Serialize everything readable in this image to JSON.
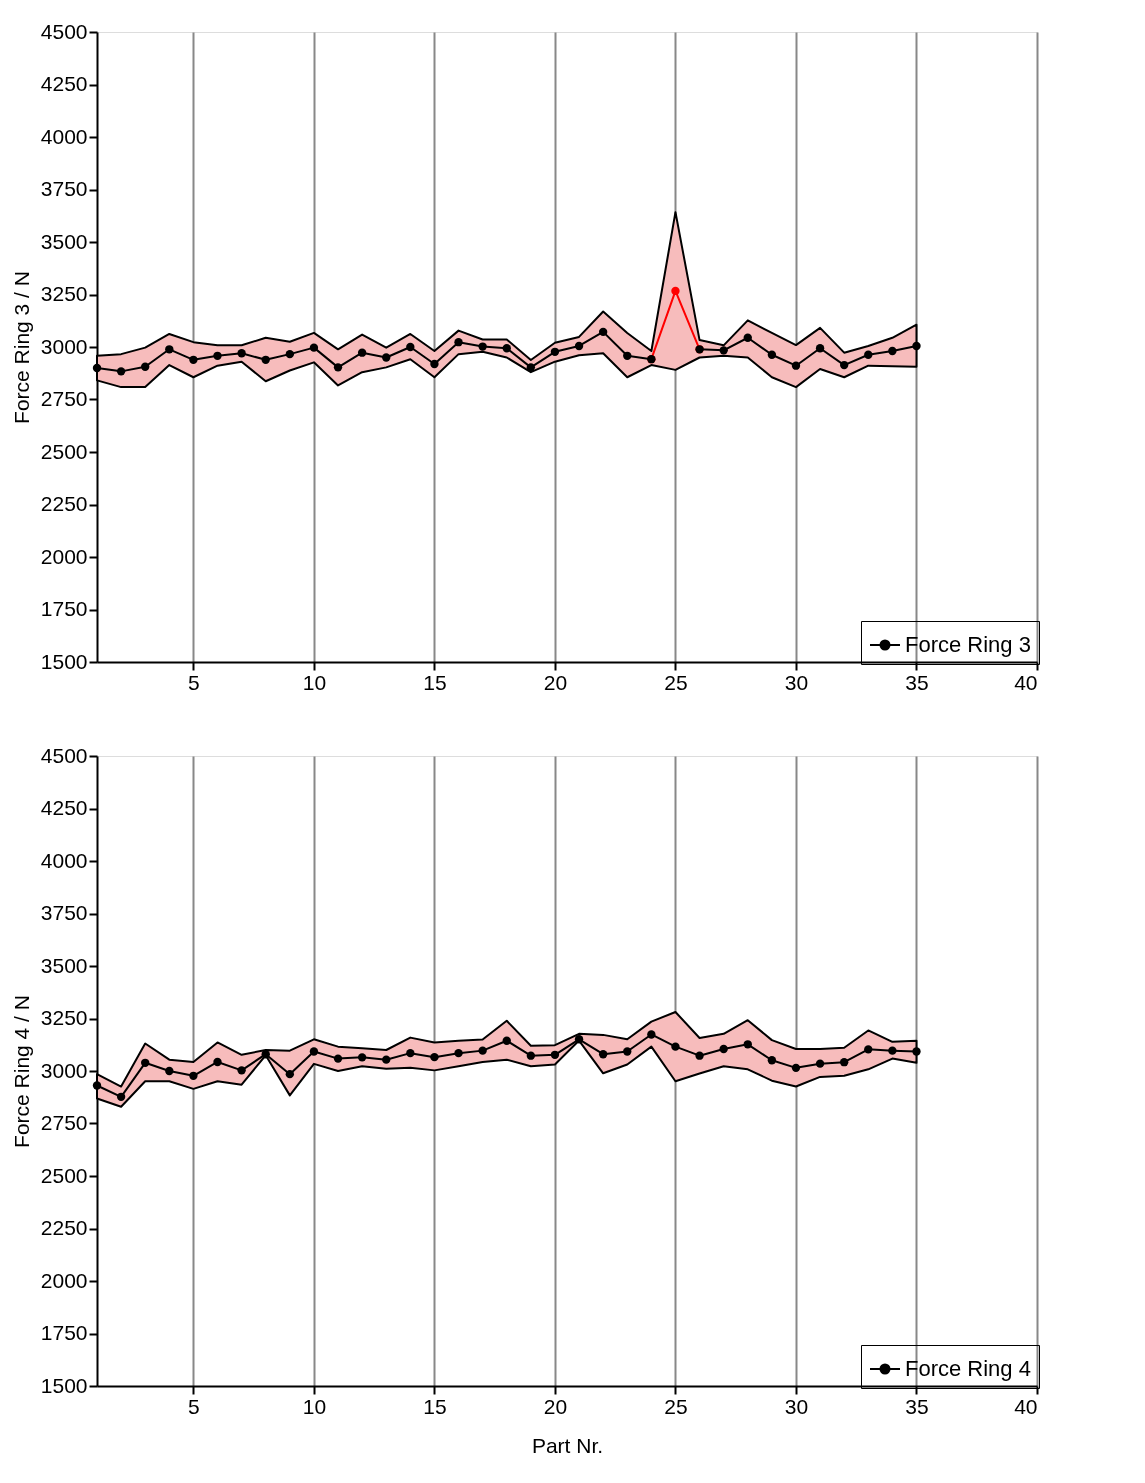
{
  "chart_data": [
    {
      "type": "line",
      "ylabel": "Force Ring 3 / N",
      "xlim": [
        1,
        40
      ],
      "xticks": [
        5,
        10,
        15,
        20,
        25,
        30,
        35,
        40
      ],
      "ylim": [
        1500,
        4500
      ],
      "yticks": [
        1500,
        1750,
        2000,
        2250,
        2500,
        2750,
        3000,
        3250,
        3500,
        3750,
        4000,
        4250,
        4500
      ],
      "grid": "x",
      "legend": "bottom right",
      "marker": "circle",
      "line_style": "solid",
      "x": [
        1,
        2,
        3,
        4,
        5,
        6,
        7,
        8,
        9,
        10,
        11,
        12,
        13,
        14,
        15,
        16,
        17,
        18,
        19,
        20,
        21,
        22,
        23,
        24,
        25,
        26,
        27,
        28,
        29,
        30,
        31,
        32,
        33,
        34,
        35
      ],
      "series": [
        {
          "color": "#ff0000",
          "x": [
            24,
            25,
            26
          ],
          "values": [
            2942,
            3267,
            2989
          ]
        },
        {
          "name": "Force Ring 3",
          "color": "#000000",
          "values": [
            2900,
            2884,
            2906,
            2989,
            2939,
            2958,
            2970,
            2939,
            2966,
            2997,
            2903,
            2973,
            2950,
            3000,
            2919,
            3023,
            3002,
            2994,
            2903,
            2977,
            3005,
            3072,
            2958,
            2942,
            null,
            2989,
            2984,
            3044,
            2963,
            2911,
            2994,
            2914,
            2963,
            2981,
            3005
          ],
          "lower": [
            2841,
            2809,
            2809,
            2914,
            2856,
            2911,
            2930,
            2837,
            2888,
            2927,
            2817,
            2880,
            2903,
            2942,
            2856,
            2966,
            2977,
            2950,
            2880,
            2930,
            2961,
            2970,
            2856,
            2914,
            2891,
            2950,
            2958,
            2950,
            2856,
            2809,
            2895,
            2856,
            2911,
            2908,
            2906
          ],
          "upper": [
            2958,
            2966,
            2997,
            3062,
            3023,
            3008,
            3008,
            3044,
            3025,
            3067,
            2989,
            3059,
            2997,
            3062,
            2981,
            3078,
            3036,
            3036,
            2938,
            3020,
            3048,
            3169,
            3067,
            2981,
            3642,
            3033,
            3008,
            3127,
            3067,
            3009,
            3091,
            2973,
            3005,
            3044,
            3106
          ]
        }
      ]
    },
    {
      "type": "line",
      "xlabel": "Part Nr.",
      "ylabel": "Force Ring 4 / N",
      "xlim": [
        1,
        40
      ],
      "xticks": [
        5,
        10,
        15,
        20,
        25,
        30,
        35,
        40
      ],
      "ylim": [
        1500,
        4500
      ],
      "yticks": [
        1500,
        1750,
        2000,
        2250,
        2500,
        2750,
        3000,
        3250,
        3500,
        3750,
        4000,
        4250,
        4500
      ],
      "grid": "x",
      "legend": "bottom right",
      "marker": "circle",
      "line_style": "solid",
      "x": [
        1,
        2,
        3,
        4,
        5,
        6,
        7,
        8,
        9,
        10,
        11,
        12,
        13,
        14,
        15,
        16,
        17,
        18,
        19,
        20,
        21,
        22,
        23,
        24,
        25,
        26,
        27,
        28,
        29,
        30,
        31,
        32,
        33,
        34,
        35
      ],
      "series": [
        {
          "name": "Force Ring 4",
          "color": "#000000",
          "values": [
            2931,
            2877,
            3039,
            3000,
            2977,
            3043,
            3003,
            3080,
            2985,
            3093,
            3059,
            3065,
            3054,
            3085,
            3066,
            3085,
            3097,
            3144,
            3073,
            3077,
            3151,
            3080,
            3093,
            3174,
            3116,
            3073,
            3105,
            3127,
            3051,
            3015,
            3035,
            3042,
            3103,
            3097,
            3093
          ],
          "lower": [
            2869,
            2830,
            2951,
            2951,
            2915,
            2951,
            2935,
            3075,
            2884,
            3034,
            3000,
            3023,
            3011,
            3015,
            3003,
            3023,
            3043,
            3054,
            3023,
            3031,
            3145,
            2989,
            3031,
            3116,
            2951,
            2988,
            3023,
            3008,
            2954,
            2926,
            2972,
            2977,
            3008,
            3059,
            3039
          ],
          "upper": [
            2985,
            2926,
            3131,
            3054,
            3043,
            3136,
            3077,
            3100,
            3097,
            3151,
            3116,
            3108,
            3100,
            3159,
            3136,
            3144,
            3150,
            3239,
            3120,
            3123,
            3177,
            3172,
            3151,
            3235,
            3281,
            3157,
            3177,
            3242,
            3147,
            3105,
            3105,
            3111,
            3193,
            3139,
            3144
          ]
        }
      ]
    }
  ]
}
